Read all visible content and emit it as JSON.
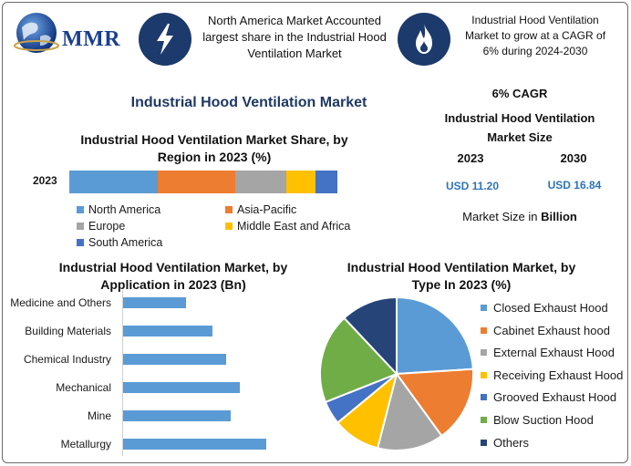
{
  "header": {
    "brand": "MMR",
    "info_left": [
      "North America Market Accounted",
      "largest share in the Industrial Hood",
      "Ventilation Market"
    ],
    "info_right": [
      "Industrial Hood Ventilation",
      "Market to grow at a CAGR of",
      "6% during 2024-2030"
    ],
    "icon_left": "lightning-icon",
    "icon_right": "flame-icon"
  },
  "main_title": "Industrial Hood Ventilation Market",
  "stats": {
    "cagr": "6% CAGR",
    "size_title_1": "Industrial Hood Ventilation",
    "size_title_2": "Market Size",
    "year_a": "2023",
    "year_b": "2030",
    "value_a": "USD 11.20",
    "value_b": "USD 16.84",
    "unit_prefix": "Market Size in ",
    "unit_bold": "Billion"
  },
  "chart_data": [
    {
      "type": "bar",
      "orientation": "horizontal-stacked",
      "title": [
        "Industrial Hood Ventilation Market Share, by",
        "Region in 2023 (%)"
      ],
      "categories": [
        "2023"
      ],
      "series": [
        {
          "name": "North America",
          "values": [
            33
          ],
          "color": "#5b9bd5"
        },
        {
          "name": "Asia-Pacific",
          "values": [
            29
          ],
          "color": "#ed7d31"
        },
        {
          "name": "Europe",
          "values": [
            19
          ],
          "color": "#a5a5a5"
        },
        {
          "name": "Middle East and Africa",
          "values": [
            11
          ],
          "color": "#ffc000"
        },
        {
          "name": "South America",
          "values": [
            8
          ],
          "color": "#4472c4"
        }
      ],
      "legend_position": "bottom"
    },
    {
      "type": "bar",
      "orientation": "horizontal",
      "title": [
        "Industrial Hood Ventilation Market, by",
        "Application in 2023 (Bn)"
      ],
      "categories": [
        "Medicine and Others",
        "Building Materials",
        "Chemical Industry",
        "Mechanical",
        "Mine",
        "Metallurgy"
      ],
      "values": [
        1.4,
        2.0,
        2.3,
        2.6,
        2.4,
        3.2
      ],
      "color": "#5b9bd5",
      "xlim": [
        0,
        3.5
      ]
    },
    {
      "type": "pie",
      "title": [
        "Industrial Hood Ventilation Market, by",
        "Type In 2023 (%)"
      ],
      "categories": [
        "Closed Exhaust Hood",
        "Cabinet Exhaust hood",
        "External Exhaust Hood",
        "Receiving Exhaust Hood",
        "Grooved Exhaust Hood",
        "Blow Suction Hood",
        "Others"
      ],
      "values": [
        24,
        16,
        14,
        10,
        5,
        19,
        12
      ],
      "colors": [
        "#5b9bd5",
        "#ed7d31",
        "#a5a5a5",
        "#ffc000",
        "#4472c4",
        "#70ad47",
        "#264478"
      ],
      "legend_position": "right"
    }
  ]
}
